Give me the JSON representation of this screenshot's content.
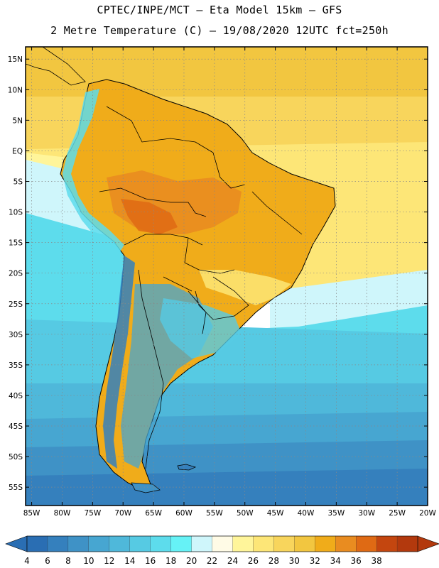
{
  "header": {
    "line1": "CPTEC/INPE/MCT –  Eta Model 15km – GFS",
    "line2": "2 Metre Temperature (C) – 19/08/2020 12UTC fct=250h"
  },
  "map": {
    "region": "South America",
    "variable": "2 Metre Temperature",
    "units": "C",
    "lat_range": [
      -58,
      17
    ],
    "lon_range": [
      -86,
      -20
    ],
    "lat_labels": [
      "15N",
      "10N",
      "5N",
      "EQ",
      "5S",
      "10S",
      "15S",
      "20S",
      "25S",
      "30S",
      "35S",
      "40S",
      "45S",
      "50S",
      "55S"
    ],
    "lon_labels": [
      "85W",
      "80W",
      "75W",
      "70W",
      "65W",
      "60W",
      "55W",
      "50W",
      "45W",
      "40W",
      "35W",
      "30W",
      "25W",
      "20W"
    ]
  },
  "colorbar": {
    "labels": [
      "4",
      "6",
      "8",
      "10",
      "12",
      "14",
      "16",
      "18",
      "20",
      "22",
      "24",
      "26",
      "28",
      "30",
      "32",
      "34",
      "36",
      "38"
    ],
    "colors": [
      "#2a6eb3",
      "#3580bd",
      "#3f92c6",
      "#47a6d1",
      "#4fb8da",
      "#56cae3",
      "#5ddcec",
      "#66f2f6",
      "#cff6fb",
      "#fffbe6",
      "#fff59a",
      "#fde677",
      "#f8d55c",
      "#f2c640",
      "#f0ac1a",
      "#e98c20",
      "#df6a14",
      "#c4460f",
      "#b3390d"
    ]
  },
  "colors": {
    "ocean_tropical": "#f8d55c",
    "ocean_subtropical": "#cff6fb",
    "ocean_mid": "#56cae3",
    "ocean_south": "#3f92c6",
    "coast": "#000000",
    "frame": "#000000"
  }
}
